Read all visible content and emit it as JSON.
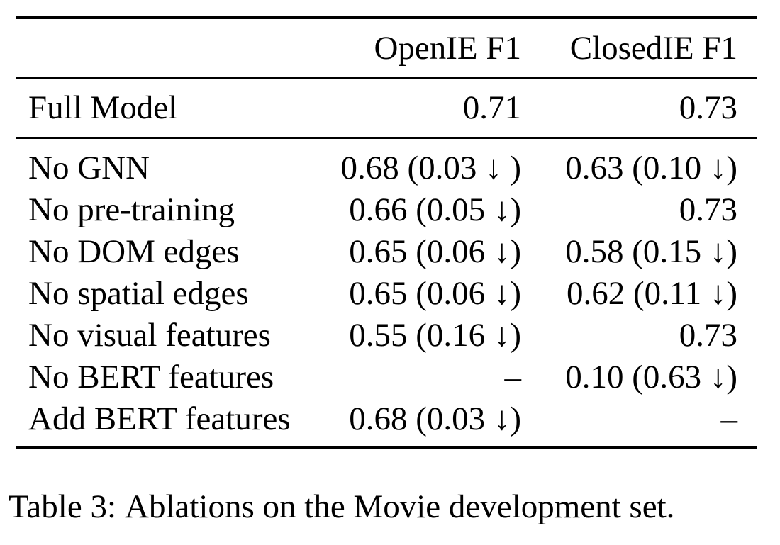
{
  "colors": {
    "text": "#000000",
    "background": "#ffffff",
    "rule": "#000000"
  },
  "table": {
    "headers": [
      "OpenIE F1",
      "ClosedIE F1"
    ],
    "full_model": {
      "label": "Full Model",
      "openie": "0.71",
      "closedie": "0.73"
    },
    "ablation_rows": [
      {
        "label": "No GNN",
        "openie": "0.68 (0.03 ↓ )",
        "closedie": "0.63 (0.10 ↓)"
      },
      {
        "label": "No pre-training",
        "openie": "0.66 (0.05 ↓)",
        "closedie": "0.73"
      },
      {
        "label": "No DOM edges",
        "openie": "0.65 (0.06 ↓)",
        "closedie": "0.58 (0.15 ↓)"
      },
      {
        "label": "No spatial edges",
        "openie": "0.65 (0.06 ↓)",
        "closedie": "0.62 (0.11 ↓)"
      },
      {
        "label": "No visual features",
        "openie": "0.55 (0.16 ↓)",
        "closedie": "0.73"
      },
      {
        "label": "No BERT features",
        "openie": "–",
        "closedie": "0.10 (0.63 ↓)"
      },
      {
        "label": "Add BERT features",
        "openie": "0.68 (0.03 ↓)",
        "closedie": "–"
      }
    ]
  },
  "caption": {
    "label": "Table 3:",
    "text": "Ablations on the Movie development set."
  }
}
